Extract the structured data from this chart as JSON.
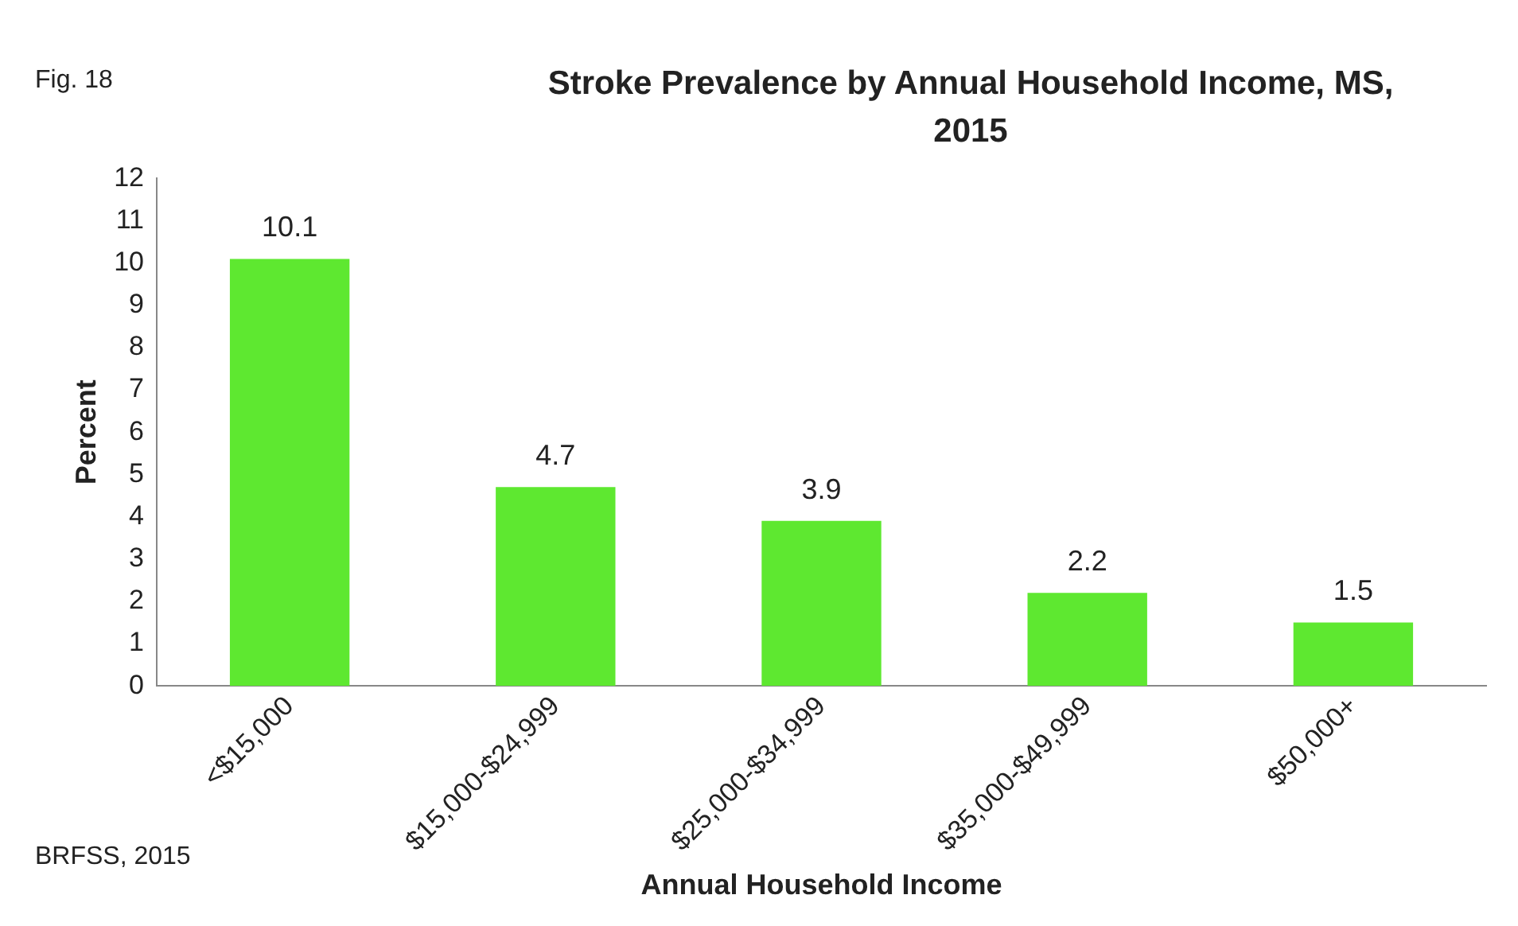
{
  "chart_data": {
    "type": "bar",
    "title": "Stroke Prevalence by  Annual Household Income, MS, 2015",
    "categories": [
      "<$15,000",
      "$15,000-$24,999",
      "$25,000-$34,999",
      "$35,000-$49,999",
      "$50,000+"
    ],
    "values": [
      10.1,
      4.7,
      3.9,
      2.2,
      1.5
    ],
    "color": "#5ee830",
    "xlabel": "Annual Household Income",
    "ylabel": "Percent",
    "ylim": [
      0,
      12
    ],
    "yticks": [
      0,
      1,
      2,
      3,
      4,
      5,
      6,
      7,
      8,
      9,
      10,
      11,
      12
    ],
    "grid": false,
    "legend": false,
    "data_labels": true,
    "annotations": [
      "Fig. 18",
      "BRFSS, 2015"
    ]
  }
}
